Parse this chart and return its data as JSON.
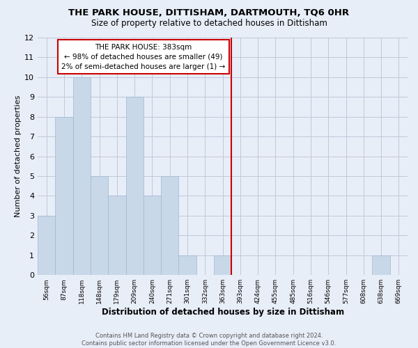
{
  "title": "THE PARK HOUSE, DITTISHAM, DARTMOUTH, TQ6 0HR",
  "subtitle": "Size of property relative to detached houses in Dittisham",
  "xlabel": "Distribution of detached houses by size in Dittisham",
  "ylabel": "Number of detached properties",
  "footer_line1": "Contains HM Land Registry data © Crown copyright and database right 2024.",
  "footer_line2": "Contains public sector information licensed under the Open Government Licence v3.0.",
  "bin_labels": [
    "56sqm",
    "87sqm",
    "118sqm",
    "148sqm",
    "179sqm",
    "209sqm",
    "240sqm",
    "271sqm",
    "301sqm",
    "332sqm",
    "363sqm",
    "393sqm",
    "424sqm",
    "455sqm",
    "485sqm",
    "516sqm",
    "546sqm",
    "577sqm",
    "608sqm",
    "638sqm",
    "669sqm"
  ],
  "bar_heights": [
    3,
    8,
    10,
    5,
    4,
    9,
    4,
    5,
    1,
    0,
    1,
    0,
    0,
    0,
    0,
    0,
    0,
    0,
    0,
    1,
    0
  ],
  "bar_color": "#c8d8e8",
  "bar_edge_color": "#a0b8d0",
  "grid_color": "#c0c8d8",
  "background_color": "#e8eef8",
  "vline_x_index": 10.5,
  "vline_color": "#cc0000",
  "annotation_title": "THE PARK HOUSE: 383sqm",
  "annotation_line1": "← 98% of detached houses are smaller (49)",
  "annotation_line2": "2% of semi-detached houses are larger (1) →",
  "annotation_box_color": "#ffffff",
  "annotation_border_color": "#cc0000",
  "ylim": [
    0,
    12
  ],
  "yticks": [
    0,
    1,
    2,
    3,
    4,
    5,
    6,
    7,
    8,
    9,
    10,
    11,
    12
  ]
}
